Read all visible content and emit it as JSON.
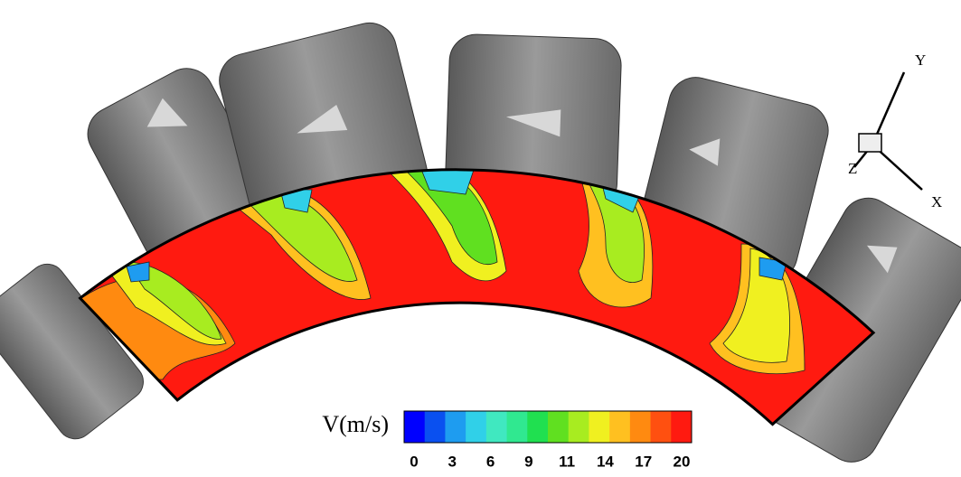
{
  "axes": {
    "y": "Y",
    "z": "Z",
    "x": "X"
  },
  "colorbar": {
    "title": "V(m/s)",
    "ticks": [
      0,
      3,
      6,
      9,
      11,
      14,
      17,
      20
    ],
    "colors": [
      "#0000ff",
      "#0a50f0",
      "#1e9cf0",
      "#30d0e8",
      "#40e8c0",
      "#30e890",
      "#20e050",
      "#60e020",
      "#a8ec20",
      "#f0f020",
      "#ffc020",
      "#ff8a10",
      "#ff5010",
      "#ff1a10"
    ]
  }
}
